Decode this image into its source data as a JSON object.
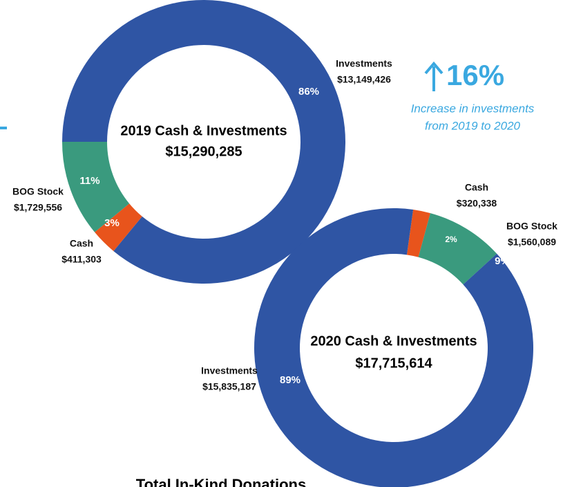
{
  "chart_data": [
    {
      "type": "pie",
      "title": "2019 Cash & Investments",
      "subtitle": "$15,290,285",
      "categories": [
        "Investments",
        "Cash",
        "BOG Stock"
      ],
      "values": [
        86,
        3,
        11
      ],
      "value_labels": [
        "86%",
        "3%",
        "11%"
      ],
      "amount_labels": [
        "$13,149,426",
        "$411,303",
        "$1,729,556"
      ],
      "colors": [
        "#2f55a4",
        "#e8541c",
        "#3a9a7e"
      ]
    },
    {
      "type": "pie",
      "title": "2020 Cash & Investments",
      "subtitle": "$17,715,614",
      "categories": [
        "Cash",
        "BOG Stock",
        "Investments"
      ],
      "values": [
        2,
        9,
        89
      ],
      "value_labels": [
        "2%",
        "9%",
        "89%"
      ],
      "amount_labels": [
        "$320,338",
        "$1,560,089",
        "$15,835,187"
      ],
      "colors": [
        "#e8541c",
        "#3a9a7e",
        "#2f55a4"
      ]
    }
  ],
  "callout": {
    "value": "16%",
    "lines": [
      "Increase in investments",
      "from 2019 to 2020"
    ]
  },
  "footer": "Total In-Kind Donations"
}
